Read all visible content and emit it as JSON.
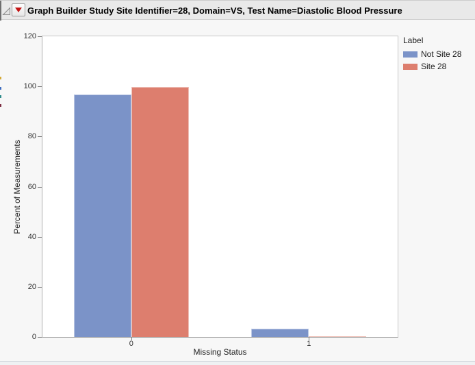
{
  "title_bar": {
    "title": "Graph Builder Study Site Identifier=28, Domain=VS, Test Name=Diastolic Blood Pressure",
    "disclosure_icon": "disclosure-triangle-icon",
    "menu_icon": "red-triangle-menu-icon"
  },
  "chart_data": {
    "type": "bar",
    "categories": [
      "0",
      "1"
    ],
    "series": [
      {
        "name": "Not Site 28",
        "color": "#7b93c8",
        "values": [
          96.8,
          3.2
        ]
      },
      {
        "name": "Site 28",
        "color": "#dd7e6e",
        "values": [
          99.7,
          0.3
        ]
      }
    ],
    "xlabel": "Missing Status",
    "ylabel": "Percent of Measurements",
    "ylim": [
      0,
      120
    ],
    "yticks": [
      0,
      20,
      40,
      60,
      80,
      100,
      120
    ],
    "legend": {
      "title": "Label"
    },
    "legend_position": "right",
    "grid": false
  },
  "colors": {
    "bar_blue": "#7b93c8",
    "bar_red": "#dd7e6e",
    "titlebar_bg": "#e9e9e9",
    "plot_bg": "#ffffff",
    "window_bg": "#f7f7f7",
    "axis_line": "#9a9a9a"
  }
}
